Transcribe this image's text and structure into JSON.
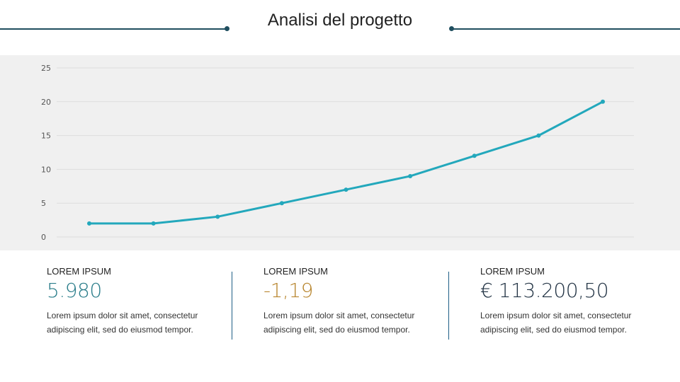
{
  "title": "Analisi del progetto",
  "colors": {
    "header_line": "#1f4e5f",
    "line_series": "#23a8bc",
    "panel_bg": "#f0f0f0",
    "grid": "#dddddd",
    "divider": "#1f5f86",
    "value_teal": "#2a7d8a",
    "value_orange": "#b8862f",
    "value_dark": "#223344"
  },
  "chart_data": {
    "type": "line",
    "x": [
      1,
      2,
      3,
      4,
      5,
      6,
      7,
      8,
      9
    ],
    "series": [
      {
        "values": [
          2,
          2,
          3,
          5,
          7,
          9,
          12,
          15,
          20
        ]
      }
    ],
    "ylim": [
      0,
      25
    ],
    "yticks": [
      "0",
      "5",
      "10",
      "15",
      "20",
      "25"
    ],
    "grid": true,
    "xlabel": "",
    "ylabel": ""
  },
  "stats": [
    {
      "label": "LOREM IPSUM",
      "value": "5.980",
      "description": "Lorem ipsum dolor sit amet, consectetur adipiscing elit, sed do eiusmod tempor.",
      "color": "#2a7d8a"
    },
    {
      "label": "LOREM IPSUM",
      "value": "-1,19",
      "description": "Lorem ipsum dolor sit amet, consectetur adipiscing elit, sed do eiusmod tempor.",
      "color": "#b8862f"
    },
    {
      "label": "LOREM IPSUM",
      "value": "€ 113.200,50",
      "description": "Lorem ipsum dolor sit amet, consectetur adipiscing elit, sed do eiusmod tempor.",
      "color": "#223344"
    }
  ]
}
